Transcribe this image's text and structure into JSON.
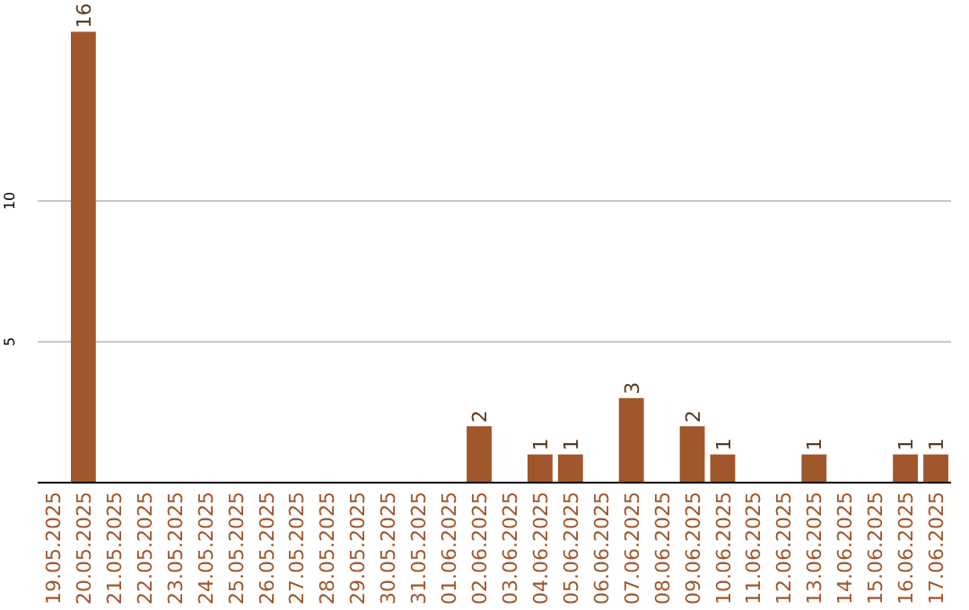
{
  "chart_data": {
    "type": "bar",
    "categories": [
      "19.05.2025",
      "20.05.2025",
      "21.05.2025",
      "22.05.2025",
      "23.05.2025",
      "24.05.2025",
      "25.05.2025",
      "26.05.2025",
      "27.05.2025",
      "28.05.2025",
      "29.05.2025",
      "30.05.2025",
      "31.05.2025",
      "01.06.2025",
      "02.06.2025",
      "03.06.2025",
      "04.06.2025",
      "05.06.2025",
      "06.06.2025",
      "07.06.2025",
      "08.06.2025",
      "09.06.2025",
      "10.06.2025",
      "11.06.2025",
      "12.06.2025",
      "13.06.2025",
      "14.06.2025",
      "15.06.2025",
      "16.06.2025",
      "17.06.2025"
    ],
    "values": [
      0,
      16,
      0,
      0,
      0,
      0,
      0,
      0,
      0,
      0,
      0,
      0,
      0,
      0,
      2,
      0,
      1,
      1,
      0,
      3,
      0,
      2,
      1,
      0,
      0,
      1,
      0,
      0,
      1,
      1
    ],
    "value_labels": [
      null,
      "16",
      null,
      null,
      null,
      null,
      null,
      null,
      null,
      null,
      null,
      null,
      null,
      null,
      "2",
      null,
      "1",
      "1",
      null,
      "3",
      null,
      "2",
      "1",
      null,
      null,
      "1",
      null,
      null,
      "1",
      "1"
    ],
    "color": "#a0572b",
    "ylim": [
      0,
      17
    ],
    "yticks": [
      5,
      10
    ],
    "grid": "y"
  }
}
